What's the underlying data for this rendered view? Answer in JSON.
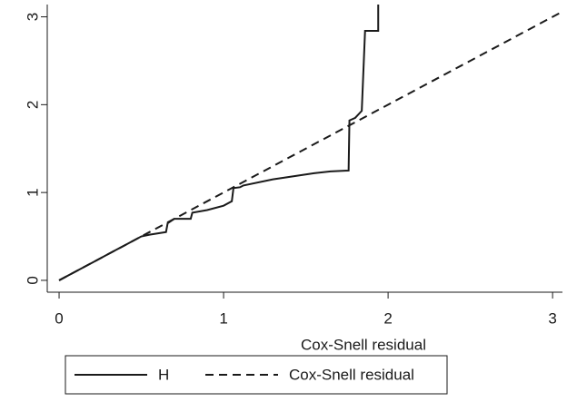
{
  "chart_data": {
    "type": "line",
    "x_label": "Cox-Snell residual",
    "xlim": [
      -0.072,
      3.06
    ],
    "ylim": [
      -0.135,
      3.14
    ],
    "xticks": [
      0,
      1,
      2,
      3
    ],
    "yticks": [
      0,
      1,
      2,
      3
    ],
    "grid": false,
    "legend": "bottom",
    "series": [
      {
        "name": "H",
        "color": "#1a1a1a",
        "dash": false,
        "x": [
          0,
          0.1,
          0.2,
          0.3,
          0.4,
          0.45,
          0.5,
          0.55,
          0.65,
          0.66,
          0.7,
          0.8,
          0.81,
          0.9,
          1.0,
          1.05,
          1.06,
          1.1,
          1.12,
          1.3,
          1.55,
          1.65,
          1.76,
          1.765,
          1.8,
          1.84,
          1.86,
          1.94,
          1.94
        ],
        "values": [
          0,
          0.1,
          0.2,
          0.3,
          0.4,
          0.45,
          0.5,
          0.52,
          0.55,
          0.65,
          0.7,
          0.7,
          0.77,
          0.8,
          0.85,
          0.9,
          1.05,
          1.06,
          1.08,
          1.15,
          1.22,
          1.24,
          1.25,
          1.82,
          1.85,
          1.93,
          2.84,
          2.84,
          3.14
        ]
      },
      {
        "name": "Cox-Snell residual",
        "color": "#1a1a1a",
        "dash": true,
        "x": [
          0,
          3.06
        ],
        "values": [
          0,
          3.06
        ]
      }
    ]
  }
}
